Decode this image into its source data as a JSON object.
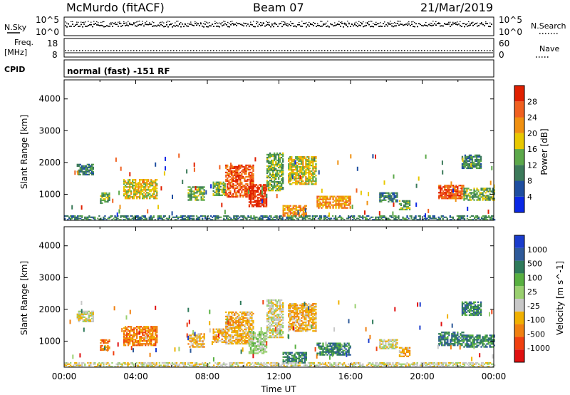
{
  "header": {
    "station": "McMurdo (fitACF)",
    "beam": "Beam 07",
    "date": "21/Mar/2019"
  },
  "strips": {
    "nsky_label": "N.Sky",
    "nsky_top": "10^5",
    "nsky_bottom": "10^0",
    "nsearch_label": "N.Search",
    "nsearch_top": "10^5",
    "nsearch_bottom": "10^0",
    "freq_label_1": "Freq.",
    "freq_label_2": "[MHz]",
    "freq_top": "18",
    "freq_bottom": "8",
    "nave_label": "Nave",
    "nave_top": "60",
    "nave_bottom": "0",
    "cpid_label": "CPID",
    "cpid_text": "normal (fast) -151 RF"
  },
  "chart_data": [
    {
      "type": "heatmap",
      "title": "",
      "xlabel": "",
      "ylabel": "Slant Range [km]",
      "colorbar_label": "Power [dB]",
      "colorbar_ticks": [
        "4",
        "8",
        "12",
        "16",
        "20",
        "24",
        "28"
      ],
      "colors": [
        "#0a28e6",
        "#1e4ea0",
        "#3c7a5a",
        "#5ca84a",
        "#e8c800",
        "#f09010",
        "#f06020",
        "#e02000"
      ],
      "ylim": [
        180,
        4600
      ],
      "yticks": [
        "1000",
        "2000",
        "3000",
        "4000"
      ],
      "xlim_hours": [
        0,
        24
      ],
      "clusters": [
        {
          "t0": 0.7,
          "t1": 1.6,
          "r0": 1600,
          "r1": 1950,
          "level": 2
        },
        {
          "t0": 2.0,
          "t1": 2.5,
          "r0": 700,
          "r1": 1050,
          "level": 3
        },
        {
          "t0": 3.3,
          "t1": 5.2,
          "r0": 850,
          "r1": 1450,
          "level": 4
        },
        {
          "t0": 6.9,
          "t1": 7.8,
          "r0": 800,
          "r1": 1250,
          "level": 3
        },
        {
          "t0": 8.3,
          "t1": 9.0,
          "r0": 950,
          "r1": 1400,
          "level": 3
        },
        {
          "t0": 9.0,
          "t1": 10.6,
          "r0": 900,
          "r1": 1900,
          "level": 6
        },
        {
          "t0": 10.3,
          "t1": 11.3,
          "r0": 600,
          "r1": 1300,
          "level": 7
        },
        {
          "t0": 11.3,
          "t1": 12.2,
          "r0": 1100,
          "r1": 2300,
          "level": 3
        },
        {
          "t0": 12.5,
          "t1": 14.1,
          "r0": 1300,
          "r1": 2200,
          "level": 4
        },
        {
          "t0": 12.2,
          "t1": 13.5,
          "r0": 300,
          "r1": 650,
          "level": 5
        },
        {
          "t0": 14.1,
          "t1": 16.0,
          "r0": 550,
          "r1": 950,
          "level": 5
        },
        {
          "t0": 17.6,
          "t1": 18.6,
          "r0": 750,
          "r1": 1050,
          "level": 2
        },
        {
          "t0": 18.7,
          "t1": 19.3,
          "r0": 500,
          "r1": 800,
          "level": 3
        },
        {
          "t0": 20.9,
          "t1": 22.3,
          "r0": 850,
          "r1": 1300,
          "level": 6
        },
        {
          "t0": 22.3,
          "t1": 24.0,
          "r0": 800,
          "r1": 1200,
          "level": 3
        },
        {
          "t0": 22.2,
          "t1": 23.3,
          "r0": 1800,
          "r1": 2250,
          "level": 2
        },
        {
          "t0": 0.0,
          "t1": 24.0,
          "r0": 180,
          "r1": 340,
          "level": 2
        }
      ]
    },
    {
      "type": "heatmap",
      "title": "",
      "xlabel": "Time UT",
      "ylabel": "Slant Range [km]",
      "colorbar_label": "Velocity [m s^-1]",
      "colorbar_ticks": [
        "1000",
        "500",
        "100",
        "25",
        "-25",
        "-100",
        "-500",
        "-1000"
      ],
      "colors": [
        "#1a3ccc",
        "#2e5a9a",
        "#2e7a5a",
        "#58b040",
        "#9ad070",
        "#c8c8c8",
        "#f0b000",
        "#f08010",
        "#f04010",
        "#e01010"
      ],
      "ylim": [
        180,
        4600
      ],
      "yticks": [
        "1000",
        "2000",
        "3000",
        "4000"
      ],
      "xticks": [
        "00:00",
        "04:00",
        "08:00",
        "12:00",
        "16:00",
        "20:00",
        "00:00"
      ],
      "xlim_hours": [
        0,
        24
      ],
      "clusters": [
        {
          "t0": 0.7,
          "t1": 1.6,
          "r0": 1600,
          "r1": 1950,
          "level": 4
        },
        {
          "t0": 2.0,
          "t1": 2.5,
          "r0": 700,
          "r1": 1050,
          "level": 2
        },
        {
          "t0": 3.3,
          "t1": 5.2,
          "r0": 850,
          "r1": 1450,
          "level": 2
        },
        {
          "t0": 6.9,
          "t1": 7.8,
          "r0": 800,
          "r1": 1250,
          "level": 3
        },
        {
          "t0": 8.3,
          "t1": 9.0,
          "r0": 950,
          "r1": 1400,
          "level": 3
        },
        {
          "t0": 9.0,
          "t1": 10.6,
          "r0": 900,
          "r1": 1900,
          "level": 3
        },
        {
          "t0": 10.3,
          "t1": 11.3,
          "r0": 600,
          "r1": 1300,
          "level": 5
        },
        {
          "t0": 11.3,
          "t1": 12.2,
          "r0": 1100,
          "r1": 2300,
          "level": 4
        },
        {
          "t0": 12.5,
          "t1": 14.1,
          "r0": 1300,
          "r1": 2200,
          "level": 3
        },
        {
          "t0": 12.2,
          "t1": 13.5,
          "r0": 300,
          "r1": 650,
          "level": 7
        },
        {
          "t0": 14.1,
          "t1": 16.0,
          "r0": 550,
          "r1": 950,
          "level": 7
        },
        {
          "t0": 17.6,
          "t1": 18.6,
          "r0": 750,
          "r1": 1050,
          "level": 4
        },
        {
          "t0": 18.7,
          "t1": 19.3,
          "r0": 500,
          "r1": 800,
          "level": 3
        },
        {
          "t0": 20.9,
          "t1": 22.3,
          "r0": 850,
          "r1": 1300,
          "level": 7
        },
        {
          "t0": 22.3,
          "t1": 24.0,
          "r0": 800,
          "r1": 1200,
          "level": 7
        },
        {
          "t0": 22.2,
          "t1": 23.3,
          "r0": 1800,
          "r1": 2250,
          "level": 7
        },
        {
          "t0": 0.0,
          "t1": 24.0,
          "r0": 180,
          "r1": 340,
          "level": 4
        }
      ]
    }
  ]
}
